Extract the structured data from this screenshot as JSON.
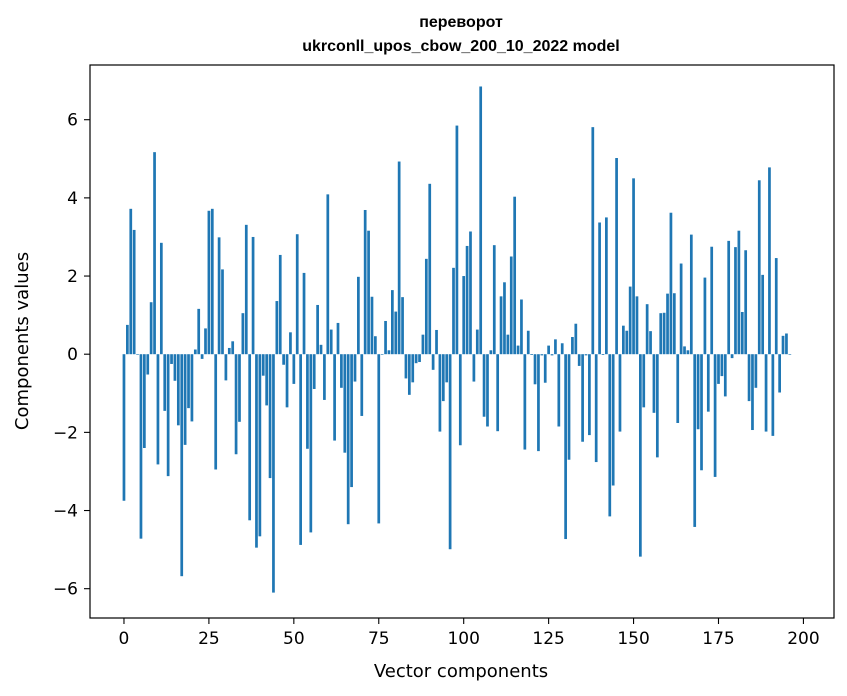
{
  "chart_data": {
    "type": "bar",
    "title_line1": "переворот",
    "title_line2": "ukrconll_upos_cbow_200_10_2022 model",
    "xlabel": "Vector components",
    "ylabel": "Components values",
    "xlim": [
      -10,
      209
    ],
    "ylim": [
      -6.75,
      7.4
    ],
    "xticks": [
      0,
      25,
      50,
      75,
      100,
      125,
      150,
      175,
      200
    ],
    "yticks": [
      -6,
      -4,
      -2,
      0,
      2,
      4,
      6
    ],
    "ytick_labels": [
      "−6",
      "−4",
      "−2",
      "0",
      "2",
      "4",
      "6"
    ],
    "bar_color": "#1f77b4",
    "grid": false,
    "values": [
      -3.75,
      0.75,
      3.72,
      3.18,
      0.0,
      -4.72,
      -2.4,
      -0.52,
      1.33,
      5.17,
      -2.82,
      2.85,
      -1.45,
      -3.12,
      -0.25,
      -0.68,
      -1.82,
      -5.68,
      -2.32,
      -1.38,
      -1.72,
      0.12,
      1.16,
      -0.12,
      0.66,
      3.67,
      3.72,
      -2.95,
      2.99,
      2.17,
      -0.67,
      0.16,
      0.33,
      -2.56,
      -1.73,
      1.05,
      3.31,
      -4.25,
      3.0,
      -4.95,
      -4.66,
      -0.55,
      -1.31,
      -3.17,
      -6.1,
      1.36,
      2.54,
      -0.27,
      -1.36,
      0.56,
      -0.76,
      3.07,
      -4.88,
      2.08,
      -2.42,
      -4.56,
      -0.89,
      1.26,
      0.24,
      -1.17,
      4.09,
      0.63,
      -2.21,
      0.8,
      -0.86,
      -2.52,
      -4.35,
      -3.4,
      -0.7,
      1.98,
      -1.58,
      3.69,
      3.16,
      1.47,
      0.46,
      -4.33,
      0.0,
      0.85,
      0.1,
      1.64,
      1.09,
      4.93,
      1.46,
      -0.62,
      -1.04,
      -0.72,
      -0.23,
      -0.2,
      0.5,
      2.44,
      4.36,
      -0.4,
      0.62,
      -1.98,
      -1.2,
      -0.72,
      -4.99,
      2.21,
      5.85,
      -2.33,
      2.0,
      2.77,
      3.14,
      -0.7,
      0.63,
      6.85,
      -1.6,
      -1.85,
      0.1,
      2.79,
      -1.97,
      1.48,
      1.84,
      0.5,
      2.5,
      4.03,
      0.22,
      1.4,
      -2.44,
      0.6,
      -0.02,
      -0.77,
      -2.48,
      -0.03,
      -0.73,
      0.22,
      -0.03,
      0.38,
      -1.85,
      0.28,
      -4.73,
      -2.7,
      0.44,
      0.78,
      -0.3,
      -2.24,
      -0.03,
      -2.07,
      5.81,
      -2.76,
      3.37,
      -0.02,
      3.5,
      -4.15,
      -3.36,
      5.02,
      -1.98,
      0.73,
      0.6,
      1.73,
      4.5,
      1.48,
      -5.18,
      -1.36,
      1.28,
      0.59,
      -1.5,
      -2.64,
      1.05,
      1.06,
      1.55,
      3.62,
      1.56,
      -1.76,
      2.32,
      0.2,
      0.1,
      3.06,
      -4.42,
      -1.92,
      -2.97,
      1.96,
      -1.47,
      2.75,
      -3.14,
      -0.76,
      -0.56,
      -1.08,
      2.9,
      -0.1,
      2.74,
      3.16,
      1.08,
      2.66,
      -1.2,
      -1.94,
      -0.86,
      4.45,
      2.03,
      -1.98,
      4.78,
      -2.09,
      2.46,
      -0.98,
      0.47,
      0.53,
      0.0
    ]
  }
}
